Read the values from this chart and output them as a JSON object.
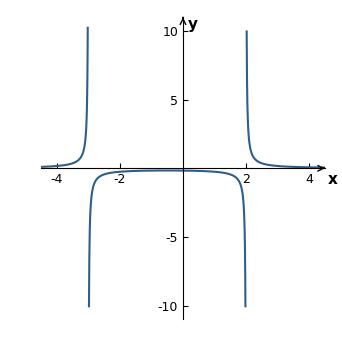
{
  "title": "",
  "xlabel": "x",
  "ylabel": "y",
  "xlim": [
    -4.5,
    4.5
  ],
  "ylim": [
    -11,
    11
  ],
  "xticks": [
    -4,
    -2,
    2,
    4
  ],
  "yticks": [
    -10,
    -5,
    5,
    10
  ],
  "asymptotes": [
    -3,
    2
  ],
  "line_color": "#2e5f8a",
  "line_width": 1.5,
  "background_color": "#ffffff",
  "figsize": [
    3.42,
    3.47
  ],
  "dpi": 100
}
